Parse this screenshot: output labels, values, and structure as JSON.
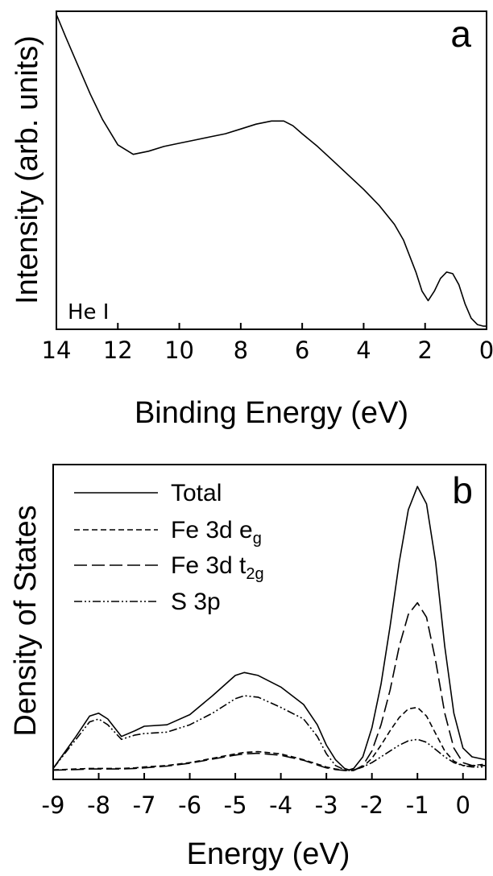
{
  "chart_data": [
    {
      "type": "line",
      "panel_label": "a",
      "annotation": "He I",
      "xlabel": "Binding Energy (eV)",
      "ylabel": "Intensity (arb. units)",
      "xlim": [
        14,
        0
      ],
      "x_reversed": true,
      "ylim": [
        0,
        1
      ],
      "x_ticks": [
        "14",
        "12",
        "10",
        "8",
        "6",
        "4",
        "2",
        "0"
      ],
      "series": [
        {
          "x": [
            14.0,
            13.7,
            13.3,
            12.9,
            12.5,
            12.0,
            11.5,
            11.0,
            10.5,
            10.0,
            9.5,
            9.0,
            8.5,
            8.0,
            7.5,
            7.0,
            6.6,
            6.3,
            6.0,
            5.5,
            5.0,
            4.5,
            4.0,
            3.5,
            3.0,
            2.7,
            2.5,
            2.3,
            2.1,
            1.9,
            1.7,
            1.5,
            1.3,
            1.1,
            0.9,
            0.7,
            0.5,
            0.3,
            0.1,
            0.0
          ],
          "y": [
            0.99,
            0.92,
            0.83,
            0.74,
            0.66,
            0.58,
            0.55,
            0.56,
            0.575,
            0.585,
            0.595,
            0.605,
            0.615,
            0.63,
            0.645,
            0.655,
            0.655,
            0.64,
            0.615,
            0.575,
            0.53,
            0.485,
            0.44,
            0.39,
            0.33,
            0.28,
            0.23,
            0.18,
            0.12,
            0.09,
            0.12,
            0.16,
            0.18,
            0.175,
            0.14,
            0.08,
            0.035,
            0.015,
            0.01,
            0.01
          ]
        }
      ]
    },
    {
      "type": "line",
      "panel_label": "b",
      "xlabel": "Energy (eV)",
      "ylabel": "Density of States",
      "xlim": [
        -9,
        0.5
      ],
      "ylim": [
        0,
        1
      ],
      "x_ticks": [
        "-9",
        "-8",
        "-7",
        "-6",
        "-5",
        "-4",
        "-3",
        "-2",
        "-1",
        "0"
      ],
      "legend_position": "top-left",
      "x": [
        -9.0,
        -8.5,
        -8.2,
        -8.0,
        -7.8,
        -7.5,
        -7.2,
        -7.0,
        -6.5,
        -6.0,
        -5.5,
        -5.0,
        -4.8,
        -4.5,
        -4.0,
        -3.5,
        -3.2,
        -3.0,
        -2.8,
        -2.6,
        -2.5,
        -2.4,
        -2.2,
        -2.0,
        -1.8,
        -1.6,
        -1.4,
        -1.2,
        -1.0,
        -0.8,
        -0.6,
        -0.4,
        -0.2,
        0.0,
        0.2,
        0.5
      ],
      "series": [
        {
          "name": "Total",
          "style": "solid",
          "values": [
            0.01,
            0.12,
            0.19,
            0.2,
            0.18,
            0.12,
            0.14,
            0.155,
            0.16,
            0.195,
            0.26,
            0.33,
            0.34,
            0.33,
            0.29,
            0.23,
            0.16,
            0.09,
            0.04,
            0.01,
            0.005,
            0.01,
            0.05,
            0.15,
            0.3,
            0.5,
            0.72,
            0.9,
            0.98,
            0.92,
            0.72,
            0.43,
            0.2,
            0.08,
            0.05,
            0.04
          ]
        },
        {
          "name": "Fe 3d e_g",
          "label_text": "Fe 3d e",
          "label_sub": "g",
          "style": "short-dash",
          "values": [
            0.005,
            0.008,
            0.01,
            0.01,
            0.01,
            0.01,
            0.012,
            0.015,
            0.02,
            0.03,
            0.045,
            0.06,
            0.065,
            0.068,
            0.06,
            0.04,
            0.025,
            0.015,
            0.008,
            0.004,
            0.003,
            0.004,
            0.015,
            0.045,
            0.09,
            0.14,
            0.185,
            0.215,
            0.22,
            0.19,
            0.13,
            0.07,
            0.035,
            0.02,
            0.02,
            0.025
          ]
        },
        {
          "name": "Fe 3d t_2g",
          "label_text": "Fe 3d t",
          "label_sub": "2g",
          "style": "long-dash",
          "values": [
            0.004,
            0.006,
            0.008,
            0.008,
            0.008,
            0.008,
            0.01,
            0.012,
            0.018,
            0.028,
            0.042,
            0.056,
            0.06,
            0.062,
            0.055,
            0.038,
            0.022,
            0.012,
            0.006,
            0.003,
            0.002,
            0.003,
            0.02,
            0.07,
            0.16,
            0.28,
            0.43,
            0.54,
            0.58,
            0.53,
            0.38,
            0.2,
            0.08,
            0.03,
            0.02,
            0.02
          ]
        },
        {
          "name": "S 3p",
          "style": "dash-dot",
          "values": [
            0.01,
            0.11,
            0.17,
            0.18,
            0.16,
            0.11,
            0.125,
            0.13,
            0.135,
            0.16,
            0.2,
            0.25,
            0.26,
            0.255,
            0.22,
            0.18,
            0.12,
            0.06,
            0.02,
            0.005,
            0.003,
            0.005,
            0.015,
            0.03,
            0.05,
            0.07,
            0.09,
            0.105,
            0.11,
            0.1,
            0.075,
            0.05,
            0.03,
            0.02,
            0.015,
            0.015
          ]
        }
      ]
    }
  ]
}
